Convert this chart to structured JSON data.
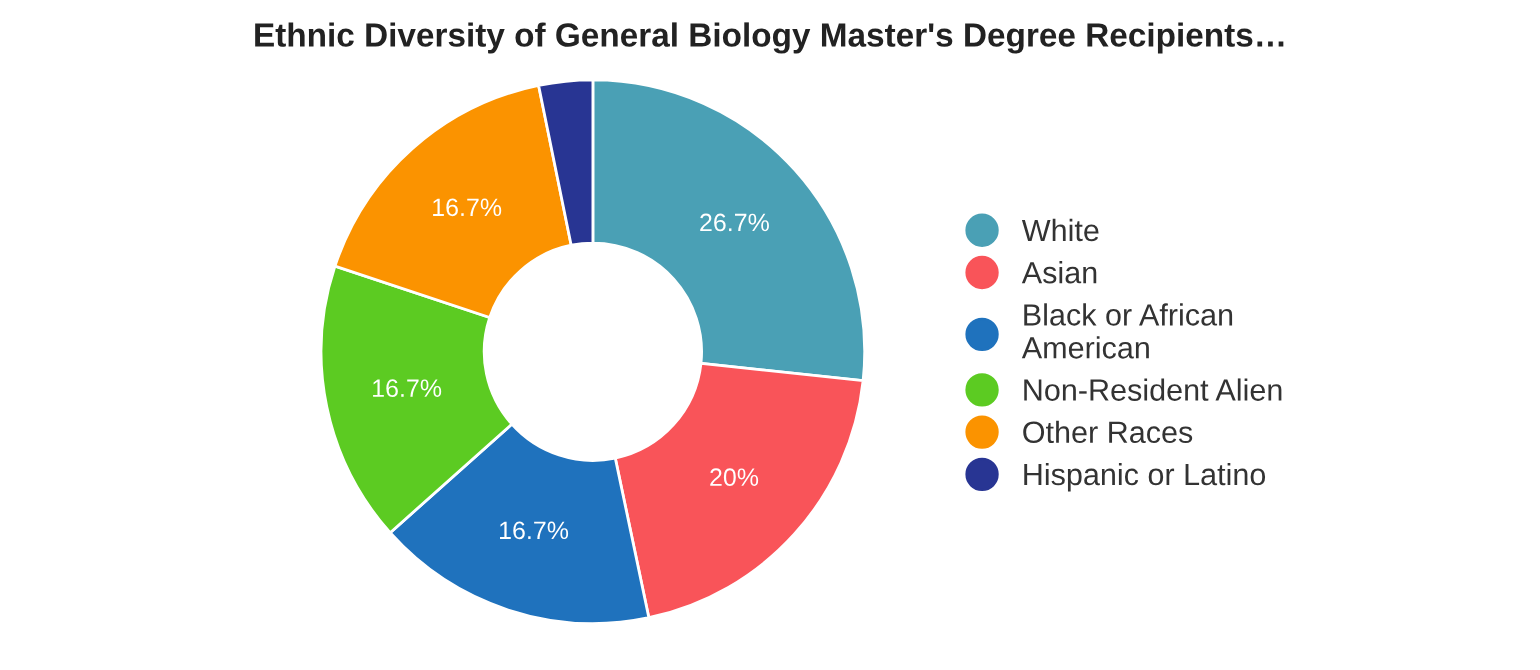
{
  "chart_data": {
    "type": "donut",
    "title": "Ethnic Diversity of General Biology Master's Degree Recipients…",
    "categories": [
      "White",
      "Asian",
      "Black or African\nAmerican",
      "Non-Resident Alien",
      "Other Races",
      "Hispanic or Latino"
    ],
    "values": [
      26.7,
      20,
      16.7,
      16.7,
      16.7,
      3.2
    ],
    "colors": [
      "#4aa0b5",
      "#f95459",
      "#1f72bd",
      "#5ccb22",
      "#fb9300",
      "#283593"
    ],
    "value_labels": [
      "26.7%",
      "20%",
      "16.7%",
      "16.7%",
      "16.7%",
      null
    ],
    "legend": "right"
  }
}
